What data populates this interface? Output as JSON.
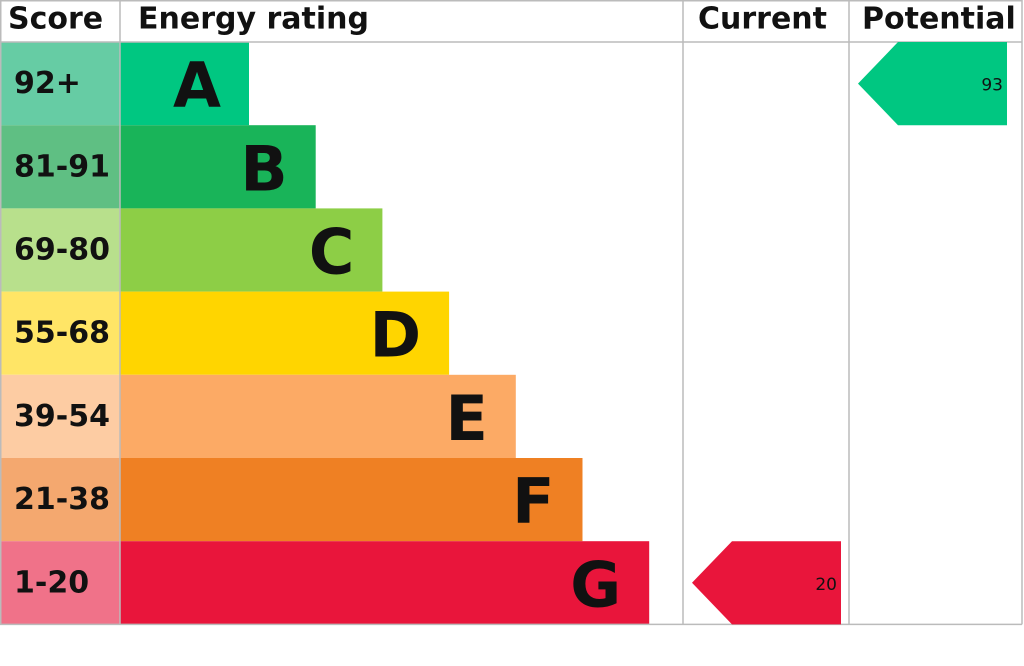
{
  "chart_data": {
    "type": "epc",
    "headers": [
      "Score",
      "Energy rating",
      "Current",
      "Potential"
    ],
    "bands": [
      {
        "score": "92+",
        "letter": "A",
        "color": "#00c781",
        "light": "#66cca4"
      },
      {
        "score": "81-91",
        "letter": "B",
        "color": "#19b459",
        "light": "#5fbf83"
      },
      {
        "score": "69-80",
        "letter": "C",
        "color": "#8dce46",
        "light": "#b8e08c"
      },
      {
        "score": "55-68",
        "letter": "D",
        "color": "#ffd500",
        "light": "#ffe566"
      },
      {
        "score": "39-54",
        "letter": "E",
        "color": "#fcaa65",
        "light": "#fdcca3"
      },
      {
        "score": "21-38",
        "letter": "F",
        "color": "#ef8023",
        "light": "#f4a86f"
      },
      {
        "score": "1-20",
        "letter": "G",
        "color": "#e9153b",
        "light": "#f07289"
      }
    ],
    "current": 20,
    "potential": 93
  }
}
